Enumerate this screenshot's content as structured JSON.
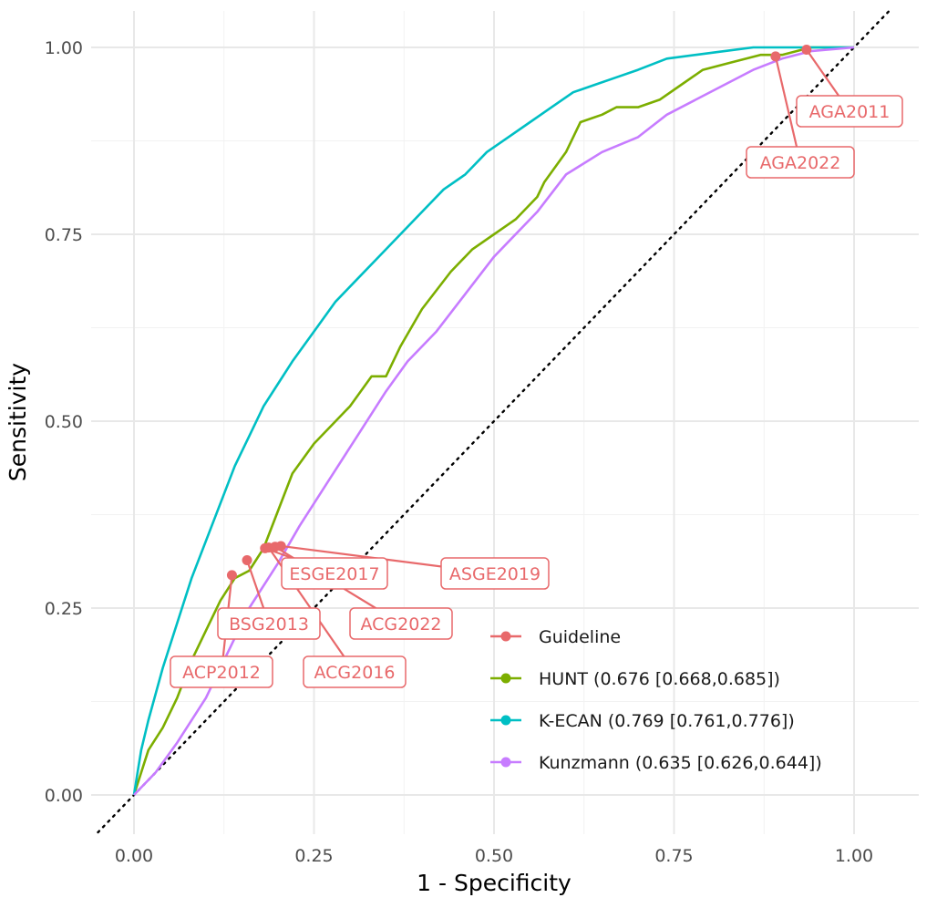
{
  "chart_data": {
    "type": "line",
    "xlabel": "1 - Specificity",
    "ylabel": "Sensitivity",
    "xlim": [
      0,
      1
    ],
    "ylim": [
      0,
      1
    ],
    "x_ticks": [
      "0.00",
      "0.25",
      "0.50",
      "0.75",
      "1.00"
    ],
    "y_ticks": [
      "0.00",
      "0.25",
      "0.50",
      "0.75",
      "1.00"
    ],
    "grid": true,
    "legend_position": "bottom-right",
    "reference_line": "diagonal dotted",
    "series": [
      {
        "name": "HUNT (0.676 [0.668,0.685])",
        "color": "#7CAE00",
        "x": [
          0,
          0.02,
          0.04,
          0.06,
          0.08,
          0.1,
          0.12,
          0.14,
          0.16,
          0.18,
          0.2,
          0.22,
          0.25,
          0.28,
          0.3,
          0.33,
          0.35,
          0.37,
          0.4,
          0.44,
          0.47,
          0.5,
          0.53,
          0.56,
          0.57,
          0.6,
          0.62,
          0.65,
          0.67,
          0.7,
          0.73,
          0.76,
          0.79,
          0.83,
          0.87,
          0.9,
          0.94,
          0.97,
          1.0
        ],
        "y": [
          0,
          0.06,
          0.09,
          0.13,
          0.18,
          0.22,
          0.26,
          0.29,
          0.3,
          0.33,
          0.38,
          0.43,
          0.47,
          0.5,
          0.52,
          0.56,
          0.56,
          0.6,
          0.65,
          0.7,
          0.73,
          0.75,
          0.77,
          0.8,
          0.82,
          0.86,
          0.9,
          0.91,
          0.92,
          0.92,
          0.93,
          0.95,
          0.97,
          0.98,
          0.99,
          0.99,
          1.0,
          1.0,
          1.0
        ]
      },
      {
        "name": "K-ECAN (0.769 [0.761,0.776])",
        "color": "#00BFC4",
        "x": [
          0,
          0.005,
          0.01,
          0.02,
          0.04,
          0.06,
          0.08,
          0.1,
          0.12,
          0.14,
          0.16,
          0.18,
          0.2,
          0.22,
          0.25,
          0.28,
          0.31,
          0.34,
          0.37,
          0.4,
          0.43,
          0.46,
          0.49,
          0.52,
          0.55,
          0.58,
          0.61,
          0.64,
          0.67,
          0.7,
          0.74,
          0.78,
          0.82,
          0.86,
          0.9,
          0.95,
          1.0
        ],
        "y": [
          0,
          0.03,
          0.06,
          0.1,
          0.17,
          0.23,
          0.29,
          0.34,
          0.39,
          0.44,
          0.48,
          0.52,
          0.55,
          0.58,
          0.62,
          0.66,
          0.69,
          0.72,
          0.75,
          0.78,
          0.81,
          0.83,
          0.86,
          0.88,
          0.9,
          0.92,
          0.94,
          0.95,
          0.96,
          0.97,
          0.985,
          0.99,
          0.995,
          1.0,
          1.0,
          1.0,
          1.0
        ]
      },
      {
        "name": "Kunzmann (0.635 [0.626,0.644])",
        "color": "#C77CFF",
        "x": [
          0,
          0.03,
          0.06,
          0.1,
          0.13,
          0.16,
          0.2,
          0.23,
          0.27,
          0.31,
          0.35,
          0.38,
          0.42,
          0.46,
          0.5,
          0.52,
          0.56,
          0.6,
          0.65,
          0.7,
          0.74,
          0.78,
          0.82,
          0.86,
          0.9,
          0.94,
          1.0
        ],
        "y": [
          0,
          0.03,
          0.07,
          0.13,
          0.19,
          0.25,
          0.31,
          0.36,
          0.42,
          0.48,
          0.54,
          0.58,
          0.62,
          0.67,
          0.72,
          0.74,
          0.78,
          0.83,
          0.86,
          0.88,
          0.91,
          0.93,
          0.95,
          0.97,
          0.985,
          0.995,
          1.0
        ]
      }
    ],
    "points": {
      "name": "Guideline",
      "color": "#E8696B",
      "items": [
        {
          "label": "ACP2012",
          "x": 0.136,
          "y": 0.294
        },
        {
          "label": "BSG2013",
          "x": 0.157,
          "y": 0.314
        },
        {
          "label": "ESGE2017",
          "x": 0.182,
          "y": 0.33
        },
        {
          "label": "ACG2016",
          "x": 0.187,
          "y": 0.331
        },
        {
          "label": "ACG2022",
          "x": 0.196,
          "y": 0.332
        },
        {
          "label": "ASGE2019",
          "x": 0.204,
          "y": 0.333
        },
        {
          "label": "AGA2022",
          "x": 0.891,
          "y": 0.988
        },
        {
          "label": "AGA2011",
          "x": 0.934,
          "y": 0.997
        }
      ]
    },
    "legend": [
      {
        "label": "Guideline",
        "color": "#E8696B"
      },
      {
        "label": "HUNT (0.676 [0.668,0.685])",
        "color": "#7CAE00"
      },
      {
        "label": "K-ECAN (0.769 [0.761,0.776])",
        "color": "#00BFC4"
      },
      {
        "label": "Kunzmann (0.635 [0.626,0.644])",
        "color": "#C77CFF"
      }
    ]
  }
}
